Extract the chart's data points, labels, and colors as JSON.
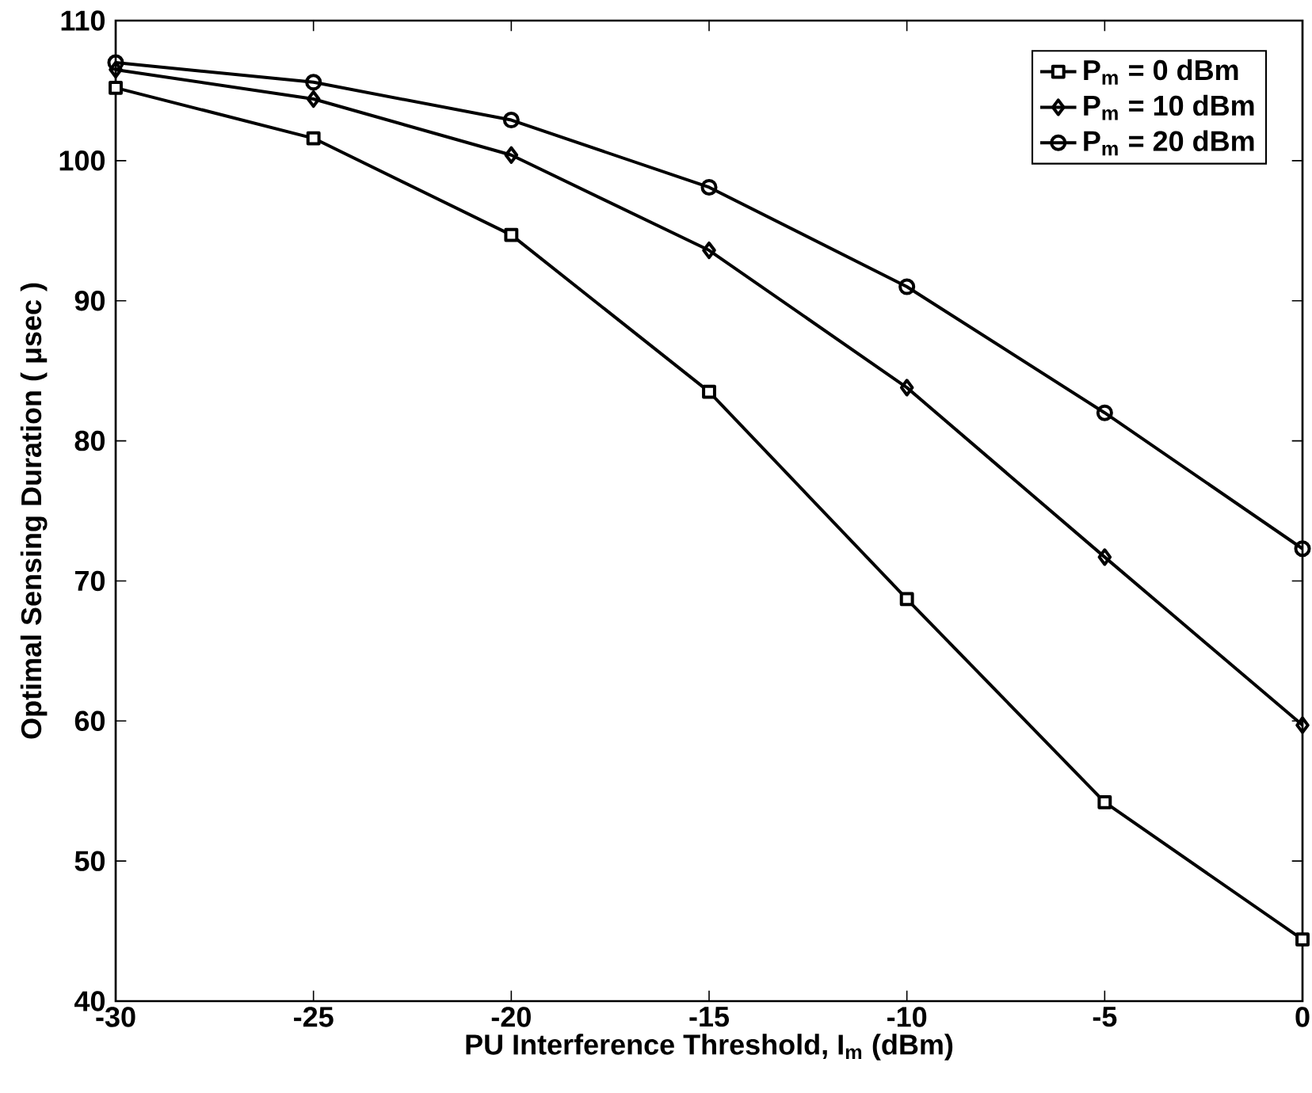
{
  "chart_data": {
    "type": "line",
    "xlabel": "PU Interference Threshold, I$_{m}$ (dBm)",
    "ylabel": "Optimal Sensing Duration  ( μsec )",
    "x": [
      -30,
      -25,
      -20,
      -15,
      -10,
      -5,
      0
    ],
    "series": [
      {
        "name": "P$_{m}$ = 0 dBm",
        "color": "#000000",
        "marker": "square",
        "values": [
          105.2,
          101.6,
          94.7,
          83.5,
          68.7,
          54.2,
          44.4
        ]
      },
      {
        "name": "P$_{m}$ = 10 dBm",
        "color": "#000000",
        "marker": "diamond",
        "values": [
          106.5,
          104.4,
          100.4,
          93.6,
          83.8,
          71.7,
          59.7
        ]
      },
      {
        "name": "P$_{m}$ = 20 dBm",
        "color": "#000000",
        "marker": "circle",
        "values": [
          107.0,
          105.6,
          102.9,
          98.1,
          91.0,
          82.0,
          72.3
        ]
      }
    ],
    "xlim": [
      -30,
      0
    ],
    "ylim": [
      40,
      110
    ],
    "xticks": [
      -30,
      -25,
      -20,
      -15,
      -10,
      -5,
      0
    ],
    "yticks": [
      40,
      50,
      60,
      70,
      80,
      90,
      100,
      110
    ],
    "grid": false,
    "legend": "top right",
    "line_style": "solid"
  }
}
